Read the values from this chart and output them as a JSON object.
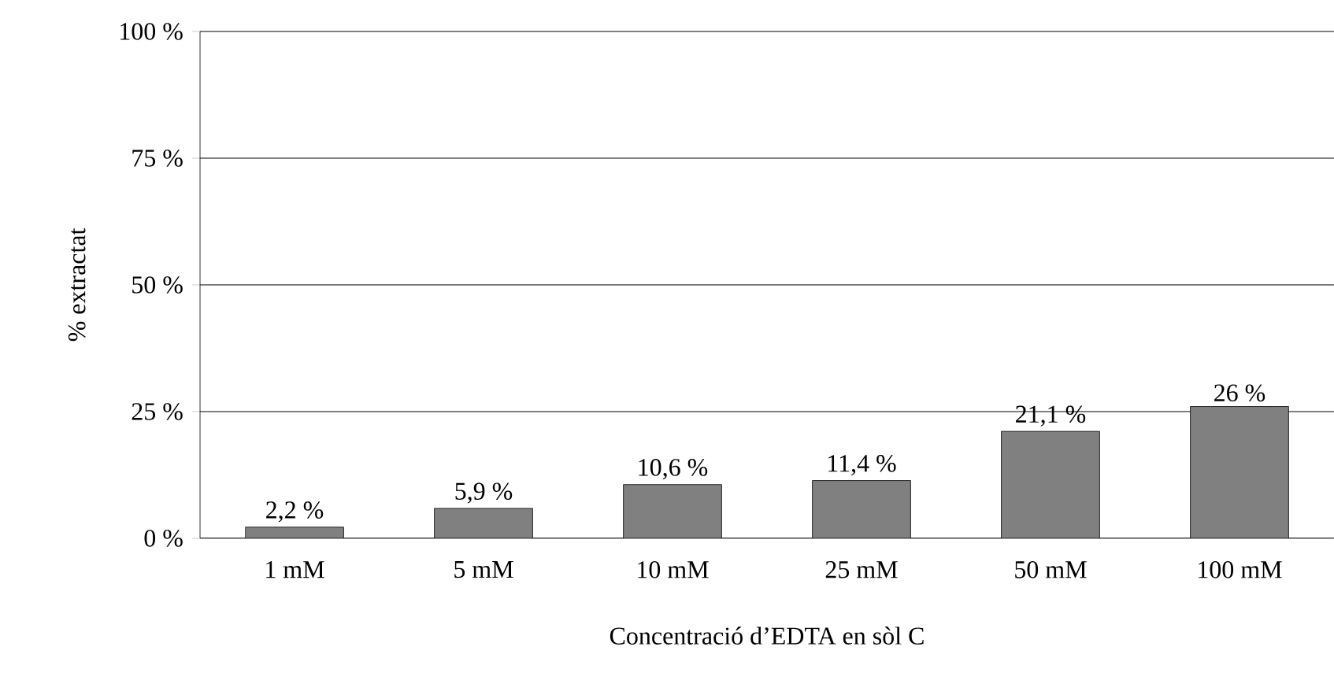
{
  "chart_data": {
    "type": "bar",
    "xlabel": "Concentració d’EDTA en sòl C",
    "ylabel": "% extractat",
    "categories": [
      "1 mM",
      "5 mM",
      "10 mM",
      "25 mM",
      "50 mM",
      "100 mM"
    ],
    "values": [
      2.2,
      5.9,
      10.6,
      11.4,
      21.1,
      26
    ],
    "value_labels": [
      "2,2 %",
      "5,9 %",
      "10,6 %",
      "11,4 %",
      "21,1 %",
      "26 %"
    ],
    "color": "#808080",
    "ylim": [
      0,
      100
    ],
    "yticks": [
      {
        "value": 0,
        "label": "0 %"
      },
      {
        "value": 25,
        "label": "25 %"
      },
      {
        "value": 50,
        "label": "50 %"
      },
      {
        "value": 75,
        "label": "75 %"
      },
      {
        "value": 100,
        "label": "100 %"
      }
    ],
    "grid": "y"
  }
}
